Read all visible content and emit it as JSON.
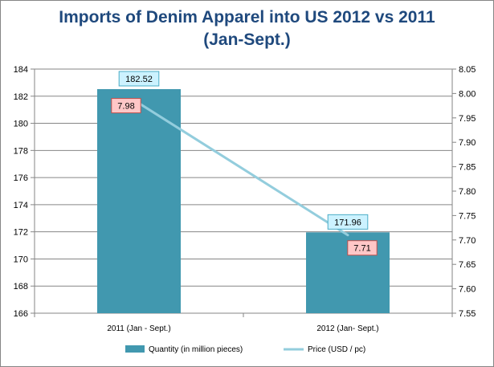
{
  "title_line1": "Imports of Denim Apparel into US 2012 vs 2011",
  "title_line2": "(Jan-Sept.)",
  "chart_data": {
    "type": "bar",
    "categories": [
      "2011 (Jan - Sept.)",
      "2012 (Jan- Sept.)"
    ],
    "series": [
      {
        "name": "Quantity (in million pieces)",
        "type": "bar",
        "axis": "left",
        "values": [
          182.52,
          171.96
        ],
        "color": "#4198af"
      },
      {
        "name": "Price (USD / pc)",
        "type": "line",
        "axis": "right",
        "values": [
          7.98,
          7.71
        ],
        "color": "#93cddd"
      }
    ],
    "y_left": {
      "min": 166,
      "max": 184,
      "step": 2,
      "ticks": [
        "166",
        "168",
        "170",
        "172",
        "174",
        "176",
        "178",
        "180",
        "182",
        "184"
      ]
    },
    "y_right": {
      "min": 7.55,
      "max": 8.05,
      "step": 0.05,
      "ticks": [
        "7.55",
        "7.60",
        "7.65",
        "7.70",
        "7.75",
        "7.80",
        "7.85",
        "7.90",
        "7.95",
        "8.00",
        "8.05"
      ]
    },
    "data_labels": {
      "bar": [
        "182.52",
        "171.96"
      ],
      "line": [
        "7.98",
        "7.71"
      ]
    },
    "label_colors": {
      "bar_bg": "#ccf2ff",
      "bar_border": "#4bacc6",
      "line_bg": "#ffc7c7",
      "line_border": "#c0504d"
    },
    "grid": true,
    "legend": "bottom"
  }
}
